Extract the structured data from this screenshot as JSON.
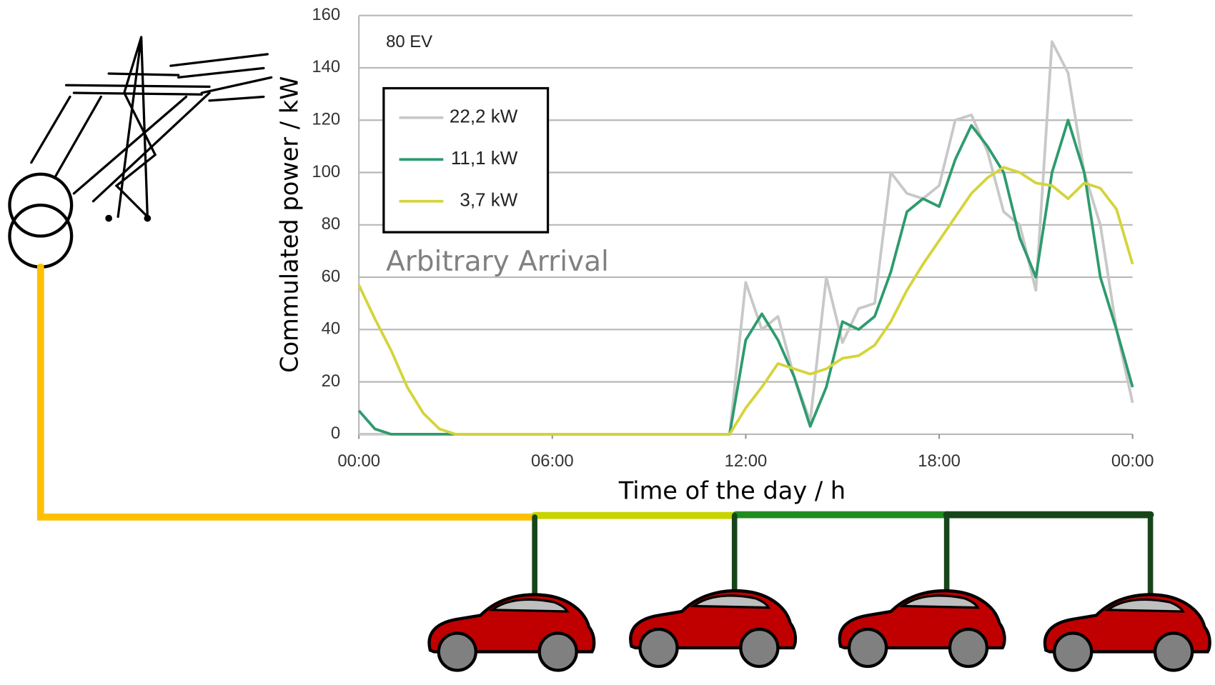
{
  "chart_data": {
    "type": "line",
    "ylabel": "Commulated power / kW",
    "xlabel": "Time of the day / h",
    "annotations": [
      "80 EV",
      "Arbitrary Arrival"
    ],
    "x": [
      0,
      0.5,
      1,
      1.5,
      2,
      2.5,
      3,
      3.5,
      4,
      4.5,
      5,
      5.5,
      6,
      6.5,
      7,
      7.5,
      8,
      8.5,
      9,
      9.5,
      10,
      10.5,
      11,
      11.5,
      12,
      12.5,
      13,
      13.5,
      14,
      14.5,
      15,
      15.5,
      16,
      16.5,
      17,
      17.5,
      18,
      18.5,
      19,
      19.5,
      20,
      20.5,
      21,
      21.5,
      22,
      22.5,
      23,
      23.5,
      24
    ],
    "series": [
      {
        "name": "22,2 kW",
        "color": "#c8c8c8",
        "values": [
          0,
          0,
          0,
          0,
          0,
          0,
          0,
          0,
          0,
          0,
          0,
          0,
          0,
          0,
          0,
          0,
          0,
          0,
          0,
          0,
          0,
          0,
          0,
          0,
          58,
          40,
          45,
          22,
          5,
          60,
          35,
          48,
          50,
          100,
          92,
          90,
          95,
          120,
          122,
          108,
          85,
          80,
          55,
          150,
          138,
          100,
          80,
          40,
          12
        ]
      },
      {
        "name": "11,1 kW",
        "color": "#2e9b6e",
        "values": [
          9,
          2,
          0,
          0,
          0,
          0,
          0,
          0,
          0,
          0,
          0,
          0,
          0,
          0,
          0,
          0,
          0,
          0,
          0,
          0,
          0,
          0,
          0,
          0,
          36,
          46,
          36,
          22,
          3,
          18,
          43,
          40,
          45,
          62,
          85,
          90,
          87,
          105,
          118,
          110,
          100,
          75,
          60,
          100,
          120,
          100,
          60,
          40,
          18
        ]
      },
      {
        "name": "3,7 kW",
        "color": "#d4d43a",
        "values": [
          57,
          44,
          32,
          18,
          8,
          2,
          0,
          0,
          0,
          0,
          0,
          0,
          0,
          0,
          0,
          0,
          0,
          0,
          0,
          0,
          0,
          0,
          0,
          0,
          10,
          18,
          27,
          25,
          23,
          25,
          29,
          30,
          34,
          43,
          55,
          65,
          74,
          83,
          92,
          98,
          102,
          100,
          96,
          95,
          90,
          96,
          94,
          86,
          65
        ]
      }
    ],
    "xlim": [
      0,
      24
    ],
    "xticks": [
      {
        "value": 0,
        "label": "00:00"
      },
      {
        "value": 6,
        "label": "06:00"
      },
      {
        "value": 12,
        "label": "12:00"
      },
      {
        "value": 18,
        "label": "18:00"
      },
      {
        "value": 24,
        "label": "00:00"
      }
    ],
    "ylim": [
      0,
      160
    ],
    "yticks": [
      0,
      20,
      40,
      60,
      80,
      100,
      120,
      140,
      160
    ],
    "grid": true,
    "legend": "top-left"
  }
}
